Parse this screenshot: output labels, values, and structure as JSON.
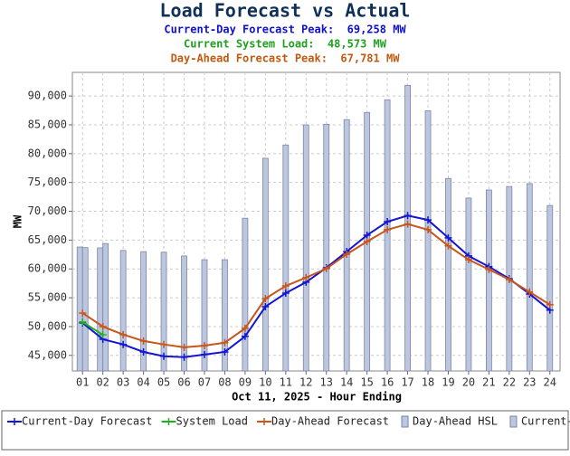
{
  "chart_data": {
    "type": "combo",
    "title": "Load Forecast vs Actual",
    "subtitles": [
      {
        "text": "Current-Day Forecast Peak:  69,258 MW",
        "color": "#1010d0"
      },
      {
        "text": "Current System Load:  48,573 MW",
        "color": "#20a020"
      },
      {
        "text": "Day-Ahead Forecast Peak:  67,781 MW",
        "color": "#c05a10"
      }
    ],
    "x_label": "Oct 11, 2025 - Hour Ending",
    "y_label": "MW",
    "categories": [
      "01",
      "02",
      "03",
      "04",
      "05",
      "06",
      "07",
      "08",
      "09",
      "10",
      "11",
      "12",
      "13",
      "14",
      "15",
      "16",
      "17",
      "18",
      "19",
      "20",
      "21",
      "22",
      "23",
      "24"
    ],
    "ylim": [
      42300,
      94100
    ],
    "yticks": [
      {
        "value": 45000,
        "label": "45,000"
      },
      {
        "value": 50000,
        "label": "50,000"
      },
      {
        "value": 55000,
        "label": "55,000"
      },
      {
        "value": 60000,
        "label": "60,000"
      },
      {
        "value": 65000,
        "label": "65,000"
      },
      {
        "value": 70000,
        "label": "70,000"
      },
      {
        "value": 75000,
        "label": "75,000"
      },
      {
        "value": 80000,
        "label": "80,000"
      },
      {
        "value": 85000,
        "label": "85,000"
      },
      {
        "value": 90000,
        "label": "90,000"
      }
    ],
    "grid": true,
    "legend": "bottom",
    "series": [
      {
        "name": "Current-Day Forecast",
        "type": "line",
        "color": "#1414d2",
        "values": [
          50640,
          47800,
          46900,
          45600,
          44850,
          44700,
          45150,
          45600,
          48300,
          53450,
          55800,
          57700,
          60200,
          63000,
          65850,
          68200,
          69258,
          68500,
          65400,
          62250,
          60400,
          58300,
          55650,
          52850
        ]
      },
      {
        "name": "System Load",
        "type": "line",
        "color": "#20b020",
        "values": [
          50800,
          48573,
          null,
          null,
          null,
          null,
          null,
          null,
          null,
          null,
          null,
          null,
          null,
          null,
          null,
          null,
          null,
          null,
          null,
          null,
          null,
          null,
          null,
          null
        ]
      },
      {
        "name": "Day-Ahead Forecast",
        "type": "line",
        "color": "#c8561a",
        "values": [
          52350,
          50000,
          48600,
          47500,
          46900,
          46400,
          46700,
          47200,
          49700,
          54850,
          57050,
          58500,
          60050,
          62550,
          64750,
          66800,
          67781,
          66800,
          64000,
          61600,
          59900,
          58150,
          56000,
          53800
        ]
      },
      {
        "name": "Day-Ahead HSL",
        "type": "bar",
        "color": "#bcc6de",
        "values": [
          63800,
          63650,
          63200,
          63000,
          62900,
          62250,
          61600,
          61600,
          68800,
          79200,
          81500,
          85000,
          85100,
          85900,
          87150,
          89350,
          91850,
          87450,
          75700,
          72300,
          73700,
          74300,
          74800,
          71000
        ]
      },
      {
        "name": "Current-Day HSL",
        "type": "bar",
        "color": "#bcc6de",
        "values": [
          63700,
          64400,
          null,
          null,
          null,
          null,
          null,
          null,
          null,
          null,
          null,
          null,
          null,
          null,
          null,
          null,
          null,
          null,
          null,
          null,
          null,
          null,
          null,
          null
        ]
      }
    ]
  }
}
